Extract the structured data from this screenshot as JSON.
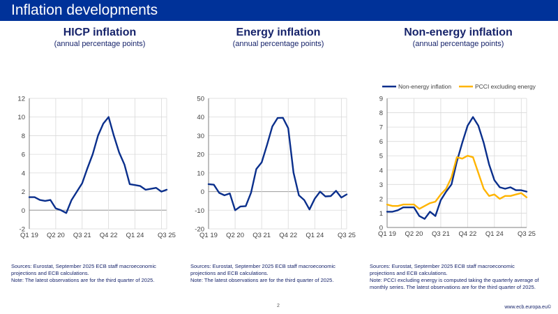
{
  "header": {
    "title": "Inflation developments"
  },
  "panels": [
    {
      "title": "HICP inflation",
      "subtitle": "(annual percentage points)",
      "note_lines": [
        "Sources: Eurostat, September 2025 ECB staff macroeconomic",
        "projections and ECB calculations.",
        "Note: The latest observations are for the third quarter of 2025."
      ]
    },
    {
      "title": "Energy inflation",
      "subtitle": "(annual percentage points)",
      "note_lines": [
        "Sources: Eurostat, September 2025 ECB staff macroeconomic",
        "projections and ECB calculations.",
        "Note: The latest observations are for the third quarter of 2025."
      ]
    },
    {
      "title": "Non-energy inflation",
      "subtitle": "(annual percentage points)",
      "note_lines": [
        "Sources: Eurostat, September 2025 ECB staff macroeconomic",
        "projections and ECB calculations.",
        "Note: PCCI excluding energy is computed taking the quarterly average of",
        "monthly series. The latest observations are for the third quarter of 2025."
      ]
    }
  ],
  "footer": {
    "page": "2",
    "url": "www.ecb.europa.eu©"
  },
  "colors": {
    "brand": "#003299",
    "series_blue": "#0a2f8c",
    "series_yellow": "#ffb400",
    "text": "#17246b"
  },
  "chart_data": [
    {
      "type": "line",
      "title": "HICP inflation",
      "subtitle": "(annual percentage points)",
      "x": [
        "Q1 19",
        "Q2 19",
        "Q3 19",
        "Q4 19",
        "Q1 20",
        "Q2 20",
        "Q3 20",
        "Q4 20",
        "Q1 21",
        "Q2 21",
        "Q3 21",
        "Q4 21",
        "Q1 22",
        "Q2 22",
        "Q3 22",
        "Q4 22",
        "Q1 23",
        "Q2 23",
        "Q3 23",
        "Q4 23",
        "Q1 24",
        "Q2 24",
        "Q3 24",
        "Q4 24",
        "Q1 25",
        "Q2 25",
        "Q3 25"
      ],
      "xticks": [
        {
          "i": 0,
          "label": "Q1 19"
        },
        {
          "i": 5,
          "label": "Q2 20"
        },
        {
          "i": 10,
          "label": "Q3 21"
        },
        {
          "i": 15,
          "label": "Q4 22"
        },
        {
          "i": 20,
          "label": "Q1 24"
        },
        {
          "i": 26,
          "label": "Q3 25"
        }
      ],
      "xgrid": [
        5,
        10,
        15,
        20,
        25
      ],
      "ylim": [
        -2,
        12
      ],
      "yticks": [
        -2,
        0,
        2,
        4,
        6,
        8,
        10,
        12
      ],
      "grid": true,
      "legend": null,
      "series": [
        {
          "name": "HICP inflation",
          "color": "#0a2f8c",
          "values": [
            1.4,
            1.4,
            1.1,
            1.0,
            1.1,
            0.2,
            -0.0,
            -0.3,
            1.1,
            2.0,
            2.9,
            4.5,
            6.0,
            8.0,
            9.3,
            10.0,
            8.0,
            6.2,
            4.9,
            2.8,
            2.7,
            2.6,
            2.2,
            2.3,
            2.4,
            2.0,
            2.2
          ]
        }
      ]
    },
    {
      "type": "line",
      "title": "Energy inflation",
      "subtitle": "(annual percentage points)",
      "x": [
        "Q1 19",
        "Q2 19",
        "Q3 19",
        "Q4 19",
        "Q1 20",
        "Q2 20",
        "Q3 20",
        "Q4 20",
        "Q1 21",
        "Q2 21",
        "Q3 21",
        "Q4 21",
        "Q1 22",
        "Q2 22",
        "Q3 22",
        "Q4 22",
        "Q1 23",
        "Q2 23",
        "Q3 23",
        "Q4 23",
        "Q1 24",
        "Q2 24",
        "Q3 24",
        "Q4 24",
        "Q1 25",
        "Q2 25",
        "Q3 25"
      ],
      "xticks": [
        {
          "i": 0,
          "label": "Q1 19"
        },
        {
          "i": 5,
          "label": "Q2 20"
        },
        {
          "i": 10,
          "label": "Q3 21"
        },
        {
          "i": 15,
          "label": "Q4 22"
        },
        {
          "i": 20,
          "label": "Q1 24"
        },
        {
          "i": 26,
          "label": "Q3 25"
        }
      ],
      "xgrid": [
        5,
        10,
        15,
        20,
        25
      ],
      "ylim": [
        -20,
        50
      ],
      "yticks": [
        -20,
        -10,
        0,
        10,
        20,
        30,
        40,
        50
      ],
      "grid": true,
      "legend": null,
      "series": [
        {
          "name": "Energy inflation",
          "color": "#0a2f8c",
          "values": [
            4.0,
            3.7,
            -0.7,
            -2.0,
            -1.0,
            -10.0,
            -8.0,
            -7.8,
            -0.6,
            12.1,
            15.7,
            25.0,
            34.9,
            39.5,
            39.6,
            34.0,
            10.2,
            -2.0,
            -4.5,
            -9.6,
            -3.8,
            0.0,
            -2.6,
            -2.4,
            0.4,
            -3.2,
            -1.5
          ]
        }
      ]
    },
    {
      "type": "line",
      "title": "Non-energy inflation",
      "subtitle": "(annual percentage points)",
      "x": [
        "Q1 19",
        "Q2 19",
        "Q3 19",
        "Q4 19",
        "Q1 20",
        "Q2 20",
        "Q3 20",
        "Q4 20",
        "Q1 21",
        "Q2 21",
        "Q3 21",
        "Q4 21",
        "Q1 22",
        "Q2 22",
        "Q3 22",
        "Q4 22",
        "Q1 23",
        "Q2 23",
        "Q3 23",
        "Q4 23",
        "Q1 24",
        "Q2 24",
        "Q3 24",
        "Q4 24",
        "Q1 25",
        "Q2 25",
        "Q3 25"
      ],
      "xticks": [
        {
          "i": 0,
          "label": "Q1 19"
        },
        {
          "i": 5,
          "label": "Q2 20"
        },
        {
          "i": 10,
          "label": "Q3 21"
        },
        {
          "i": 15,
          "label": "Q4 22"
        },
        {
          "i": 20,
          "label": "Q1 24"
        },
        {
          "i": 26,
          "label": "Q3 25"
        }
      ],
      "xgrid": [
        5,
        10,
        15,
        20,
        25
      ],
      "ylim": [
        0,
        9
      ],
      "yticks": [
        0,
        1,
        2,
        3,
        4,
        5,
        6,
        7,
        8,
        9
      ],
      "grid": true,
      "legend": "top",
      "series": [
        {
          "name": "Non-energy inflation",
          "color": "#0a2f8c",
          "values": [
            1.1,
            1.1,
            1.2,
            1.4,
            1.4,
            1.4,
            0.8,
            0.6,
            1.1,
            0.8,
            1.9,
            2.5,
            3.0,
            4.6,
            5.9,
            7.1,
            7.7,
            7.1,
            5.9,
            4.4,
            3.3,
            2.8,
            2.7,
            2.8,
            2.6,
            2.6,
            2.5
          ]
        },
        {
          "name": "PCCI excluding energy",
          "color": "#ffb400",
          "values": [
            1.6,
            1.5,
            1.5,
            1.6,
            1.6,
            1.6,
            1.3,
            1.5,
            1.7,
            1.8,
            2.3,
            2.7,
            3.5,
            4.9,
            4.8,
            5.0,
            4.9,
            3.8,
            2.7,
            2.2,
            2.3,
            2.0,
            2.2,
            2.2,
            2.3,
            2.4,
            2.1
          ]
        }
      ]
    }
  ]
}
